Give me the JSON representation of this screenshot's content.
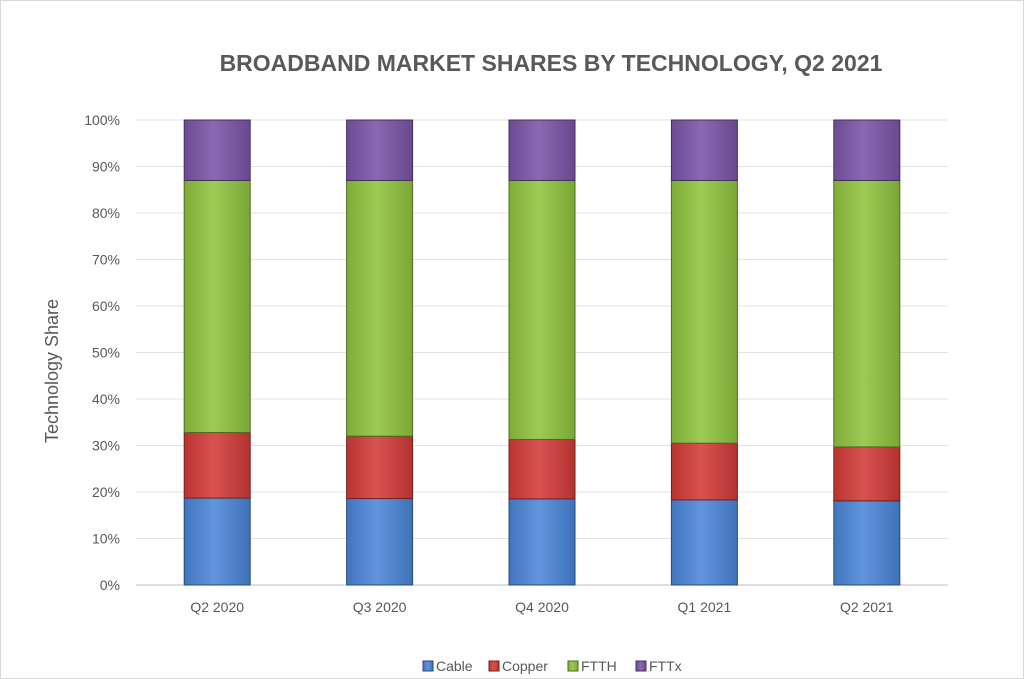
{
  "chart_data": {
    "type": "bar",
    "stacked": true,
    "title": "BROADBAND MARKET SHARES BY TECHNOLOGY,  Q2 2021",
    "xlabel": "",
    "ylabel": "Technology Share",
    "ylim": [
      0,
      100
    ],
    "y_ticks": [
      "0%",
      "10%",
      "20%",
      "30%",
      "40%",
      "50%",
      "60%",
      "70%",
      "80%",
      "90%",
      "100%"
    ],
    "grid": true,
    "legend": "bottom",
    "categories": [
      "Q2 2020",
      "Q3 2020",
      "Q4 2020",
      "Q1 2021",
      "Q2 2021"
    ],
    "series": [
      {
        "name": "Cable",
        "color": "#4a86d8",
        "values": [
          18.7,
          18.6,
          18.5,
          18.3,
          18.1
        ]
      },
      {
        "name": "Copper",
        "color": "#d23b38",
        "values": [
          14.1,
          13.4,
          12.8,
          12.2,
          11.6
        ]
      },
      {
        "name": "FTTH",
        "color": "#8fc43e",
        "values": [
          54.2,
          55.0,
          55.7,
          56.5,
          57.3
        ]
      },
      {
        "name": "FTTx",
        "color": "#7b55a8",
        "values": [
          13.0,
          13.0,
          13.0,
          13.0,
          13.0
        ]
      }
    ]
  }
}
